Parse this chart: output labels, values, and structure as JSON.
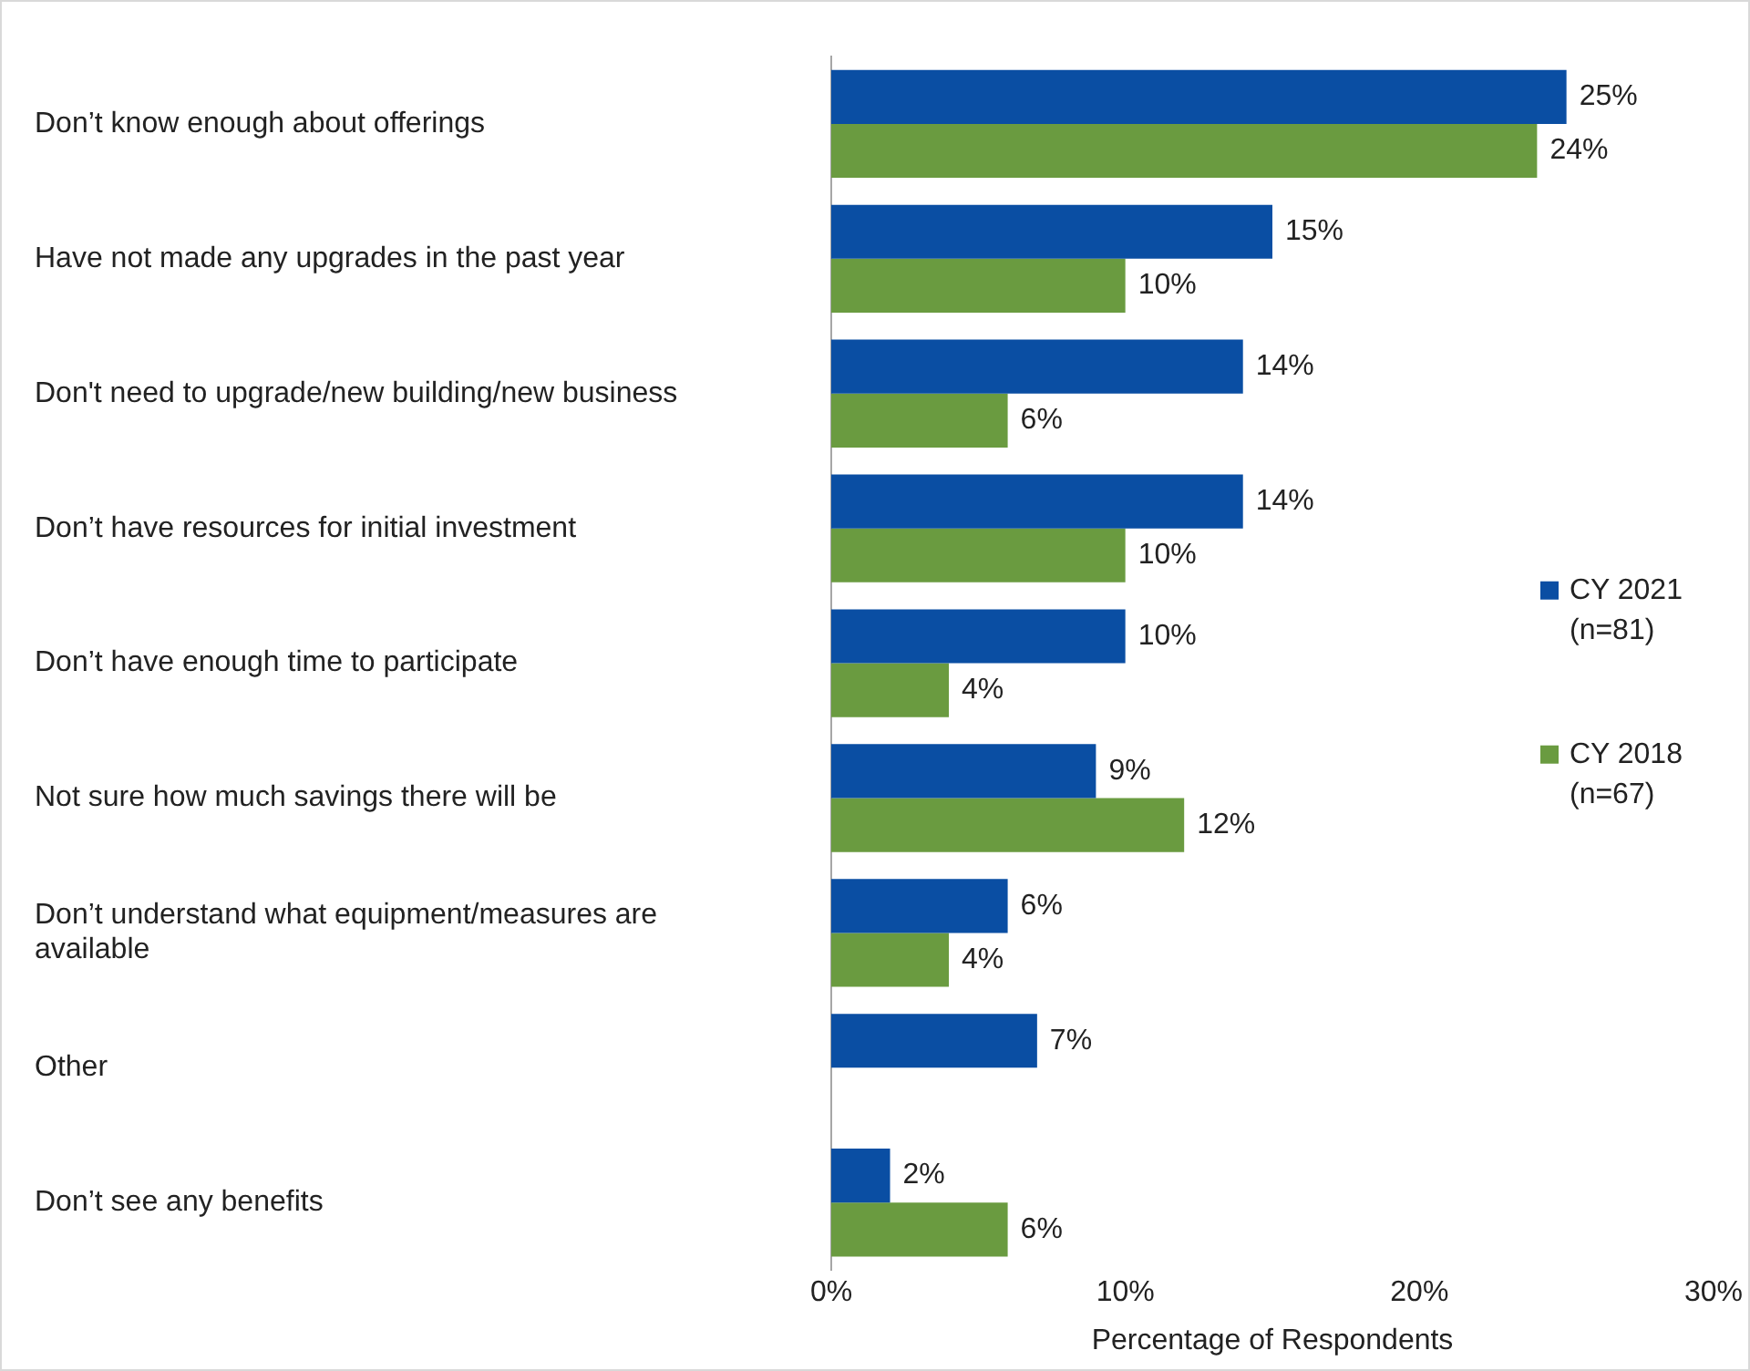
{
  "chart_data": {
    "type": "bar",
    "orientation": "horizontal",
    "xlabel": "Percentage of Respondents",
    "categories": [
      "Don’t know enough about offerings",
      "Have not made any upgrades in the past year",
      "Don't need to upgrade/new building/new business",
      "Don’t have resources for initial investment",
      "Don’t have enough time to participate",
      "Not sure how much savings there will be",
      "Don’t understand what equipment/measures are available",
      "Other",
      "Don’t see any benefits"
    ],
    "series": [
      {
        "name": "CY 2021 (n=81)",
        "color": "#0a4ea3",
        "values": [
          25,
          15,
          14,
          14,
          10,
          9,
          6,
          7,
          2
        ],
        "value_labels": [
          "25%",
          "15%",
          "14%",
          "14%",
          "10%",
          "9%",
          "6%",
          "7%",
          "2%"
        ]
      },
      {
        "name": "CY 2018 (n=67)",
        "color": "#6a9b40",
        "values": [
          24,
          10,
          6,
          10,
          4,
          12,
          4,
          null,
          6
        ],
        "value_labels": [
          "24%",
          "10%",
          "6%",
          "10%",
          "4%",
          "12%",
          "4%",
          null,
          "6%"
        ]
      }
    ],
    "xlim": [
      0,
      30
    ],
    "xticks": [
      {
        "value": 0,
        "label": "0%"
      },
      {
        "value": 10,
        "label": "10%"
      },
      {
        "value": 20,
        "label": "20%"
      },
      {
        "value": 30,
        "label": "30%"
      }
    ],
    "grid": false,
    "legend": "right"
  }
}
